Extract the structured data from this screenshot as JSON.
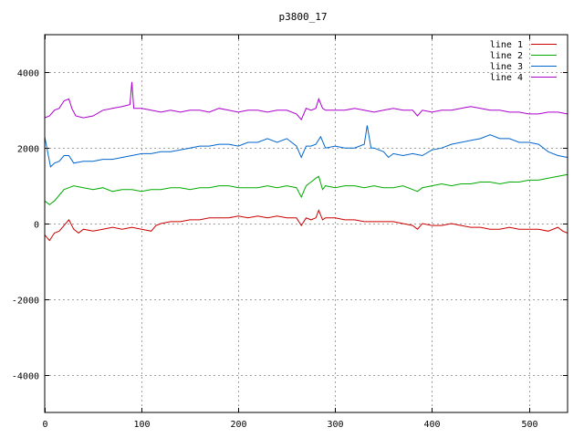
{
  "chart_data": {
    "type": "line",
    "title": "p3800_17",
    "xlabel": "",
    "ylabel": "",
    "xlim": [
      0,
      540
    ],
    "ylim": [
      -5000,
      5000
    ],
    "xticks": [
      0,
      100,
      200,
      300,
      400,
      500
    ],
    "yticks": [
      -4000,
      -2000,
      0,
      2000,
      4000
    ],
    "grid": true,
    "legend_position": "top-right",
    "series": [
      {
        "name": "line 1",
        "color": "#cc0000",
        "points": [
          [
            0,
            -300
          ],
          [
            5,
            -450
          ],
          [
            10,
            -250
          ],
          [
            15,
            -200
          ],
          [
            20,
            -50
          ],
          [
            25,
            100
          ],
          [
            30,
            -150
          ],
          [
            35,
            -250
          ],
          [
            40,
            -150
          ],
          [
            50,
            -200
          ],
          [
            60,
            -150
          ],
          [
            70,
            -100
          ],
          [
            80,
            -150
          ],
          [
            90,
            -100
          ],
          [
            100,
            -150
          ],
          [
            110,
            -200
          ],
          [
            115,
            -50
          ],
          [
            120,
            0
          ],
          [
            130,
            50
          ],
          [
            140,
            50
          ],
          [
            150,
            100
          ],
          [
            160,
            100
          ],
          [
            170,
            150
          ],
          [
            180,
            150
          ],
          [
            190,
            150
          ],
          [
            200,
            200
          ],
          [
            210,
            150
          ],
          [
            220,
            200
          ],
          [
            230,
            150
          ],
          [
            240,
            200
          ],
          [
            250,
            150
          ],
          [
            260,
            150
          ],
          [
            265,
            -50
          ],
          [
            270,
            150
          ],
          [
            275,
            100
          ],
          [
            280,
            150
          ],
          [
            283,
            350
          ],
          [
            287,
            100
          ],
          [
            290,
            150
          ],
          [
            300,
            150
          ],
          [
            310,
            100
          ],
          [
            320,
            100
          ],
          [
            330,
            50
          ],
          [
            340,
            50
          ],
          [
            350,
            50
          ],
          [
            360,
            50
          ],
          [
            370,
            0
          ],
          [
            380,
            -50
          ],
          [
            385,
            -150
          ],
          [
            390,
            0
          ],
          [
            400,
            -50
          ],
          [
            410,
            -50
          ],
          [
            420,
            0
          ],
          [
            430,
            -50
          ],
          [
            440,
            -100
          ],
          [
            450,
            -100
          ],
          [
            460,
            -150
          ],
          [
            470,
            -150
          ],
          [
            480,
            -100
          ],
          [
            490,
            -150
          ],
          [
            500,
            -150
          ],
          [
            510,
            -150
          ],
          [
            520,
            -200
          ],
          [
            530,
            -100
          ],
          [
            535,
            -200
          ],
          [
            540,
            -250
          ]
        ]
      },
      {
        "name": "line 2",
        "color": "#00aa00",
        "points": [
          [
            0,
            600
          ],
          [
            5,
            500
          ],
          [
            10,
            600
          ],
          [
            15,
            750
          ],
          [
            20,
            900
          ],
          [
            25,
            950
          ],
          [
            30,
            1000
          ],
          [
            40,
            950
          ],
          [
            50,
            900
          ],
          [
            60,
            950
          ],
          [
            70,
            850
          ],
          [
            80,
            900
          ],
          [
            90,
            900
          ],
          [
            100,
            850
          ],
          [
            110,
            900
          ],
          [
            120,
            900
          ],
          [
            130,
            950
          ],
          [
            140,
            950
          ],
          [
            150,
            900
          ],
          [
            160,
            950
          ],
          [
            170,
            950
          ],
          [
            180,
            1000
          ],
          [
            190,
            1000
          ],
          [
            200,
            950
          ],
          [
            210,
            950
          ],
          [
            220,
            950
          ],
          [
            230,
            1000
          ],
          [
            240,
            950
          ],
          [
            250,
            1000
          ],
          [
            260,
            950
          ],
          [
            265,
            700
          ],
          [
            270,
            1000
          ],
          [
            275,
            1100
          ],
          [
            280,
            1200
          ],
          [
            283,
            1250
          ],
          [
            287,
            900
          ],
          [
            290,
            1000
          ],
          [
            300,
            950
          ],
          [
            310,
            1000
          ],
          [
            320,
            1000
          ],
          [
            330,
            950
          ],
          [
            340,
            1000
          ],
          [
            350,
            950
          ],
          [
            360,
            950
          ],
          [
            370,
            1000
          ],
          [
            380,
            900
          ],
          [
            385,
            850
          ],
          [
            390,
            950
          ],
          [
            400,
            1000
          ],
          [
            410,
            1050
          ],
          [
            420,
            1000
          ],
          [
            430,
            1050
          ],
          [
            440,
            1050
          ],
          [
            450,
            1100
          ],
          [
            460,
            1100
          ],
          [
            470,
            1050
          ],
          [
            480,
            1100
          ],
          [
            490,
            1100
          ],
          [
            500,
            1150
          ],
          [
            510,
            1150
          ],
          [
            520,
            1200
          ],
          [
            530,
            1250
          ],
          [
            540,
            1300
          ]
        ]
      },
      {
        "name": "line 3",
        "color": "#0066cc",
        "points": [
          [
            0,
            2300
          ],
          [
            3,
            1900
          ],
          [
            6,
            1500
          ],
          [
            10,
            1600
          ],
          [
            15,
            1650
          ],
          [
            20,
            1800
          ],
          [
            25,
            1800
          ],
          [
            30,
            1600
          ],
          [
            40,
            1650
          ],
          [
            50,
            1650
          ],
          [
            60,
            1700
          ],
          [
            70,
            1700
          ],
          [
            80,
            1750
          ],
          [
            90,
            1800
          ],
          [
            100,
            1850
          ],
          [
            110,
            1850
          ],
          [
            120,
            1900
          ],
          [
            130,
            1900
          ],
          [
            140,
            1950
          ],
          [
            150,
            2000
          ],
          [
            160,
            2050
          ],
          [
            170,
            2050
          ],
          [
            180,
            2100
          ],
          [
            190,
            2100
          ],
          [
            200,
            2050
          ],
          [
            210,
            2150
          ],
          [
            220,
            2150
          ],
          [
            230,
            2250
          ],
          [
            240,
            2150
          ],
          [
            250,
            2250
          ],
          [
            260,
            2050
          ],
          [
            265,
            1750
          ],
          [
            270,
            2050
          ],
          [
            275,
            2050
          ],
          [
            280,
            2100
          ],
          [
            285,
            2300
          ],
          [
            290,
            2000
          ],
          [
            300,
            2050
          ],
          [
            310,
            2000
          ],
          [
            320,
            2000
          ],
          [
            330,
            2100
          ],
          [
            333,
            2600
          ],
          [
            337,
            2000
          ],
          [
            340,
            2000
          ],
          [
            350,
            1900
          ],
          [
            355,
            1750
          ],
          [
            360,
            1850
          ],
          [
            370,
            1800
          ],
          [
            380,
            1850
          ],
          [
            390,
            1800
          ],
          [
            400,
            1950
          ],
          [
            410,
            2000
          ],
          [
            420,
            2100
          ],
          [
            430,
            2150
          ],
          [
            440,
            2200
          ],
          [
            450,
            2250
          ],
          [
            460,
            2350
          ],
          [
            470,
            2250
          ],
          [
            480,
            2250
          ],
          [
            490,
            2150
          ],
          [
            500,
            2150
          ],
          [
            510,
            2100
          ],
          [
            520,
            1900
          ],
          [
            530,
            1800
          ],
          [
            540,
            1750
          ]
        ]
      },
      {
        "name": "line 4",
        "color": "#aa00cc",
        "points": [
          [
            0,
            2800
          ],
          [
            5,
            2850
          ],
          [
            10,
            3000
          ],
          [
            15,
            3050
          ],
          [
            20,
            3250
          ],
          [
            25,
            3300
          ],
          [
            28,
            3050
          ],
          [
            32,
            2850
          ],
          [
            40,
            2800
          ],
          [
            50,
            2850
          ],
          [
            60,
            3000
          ],
          [
            70,
            3050
          ],
          [
            80,
            3100
          ],
          [
            88,
            3150
          ],
          [
            90,
            3750
          ],
          [
            92,
            3050
          ],
          [
            100,
            3050
          ],
          [
            110,
            3000
          ],
          [
            120,
            2950
          ],
          [
            130,
            3000
          ],
          [
            140,
            2950
          ],
          [
            150,
            3000
          ],
          [
            160,
            3000
          ],
          [
            170,
            2950
          ],
          [
            180,
            3050
          ],
          [
            190,
            3000
          ],
          [
            200,
            2950
          ],
          [
            210,
            3000
          ],
          [
            220,
            3000
          ],
          [
            230,
            2950
          ],
          [
            240,
            3000
          ],
          [
            250,
            3000
          ],
          [
            260,
            2900
          ],
          [
            265,
            2750
          ],
          [
            270,
            3050
          ],
          [
            275,
            3000
          ],
          [
            280,
            3050
          ],
          [
            283,
            3300
          ],
          [
            287,
            3050
          ],
          [
            290,
            3000
          ],
          [
            300,
            3000
          ],
          [
            310,
            3000
          ],
          [
            320,
            3050
          ],
          [
            330,
            3000
          ],
          [
            340,
            2950
          ],
          [
            350,
            3000
          ],
          [
            360,
            3050
          ],
          [
            370,
            3000
          ],
          [
            380,
            3000
          ],
          [
            385,
            2850
          ],
          [
            390,
            3000
          ],
          [
            400,
            2950
          ],
          [
            410,
            3000
          ],
          [
            420,
            3000
          ],
          [
            430,
            3050
          ],
          [
            440,
            3100
          ],
          [
            450,
            3050
          ],
          [
            460,
            3000
          ],
          [
            470,
            3000
          ],
          [
            480,
            2950
          ],
          [
            490,
            2950
          ],
          [
            500,
            2900
          ],
          [
            510,
            2900
          ],
          [
            520,
            2950
          ],
          [
            530,
            2950
          ],
          [
            540,
            2900
          ]
        ]
      }
    ]
  }
}
